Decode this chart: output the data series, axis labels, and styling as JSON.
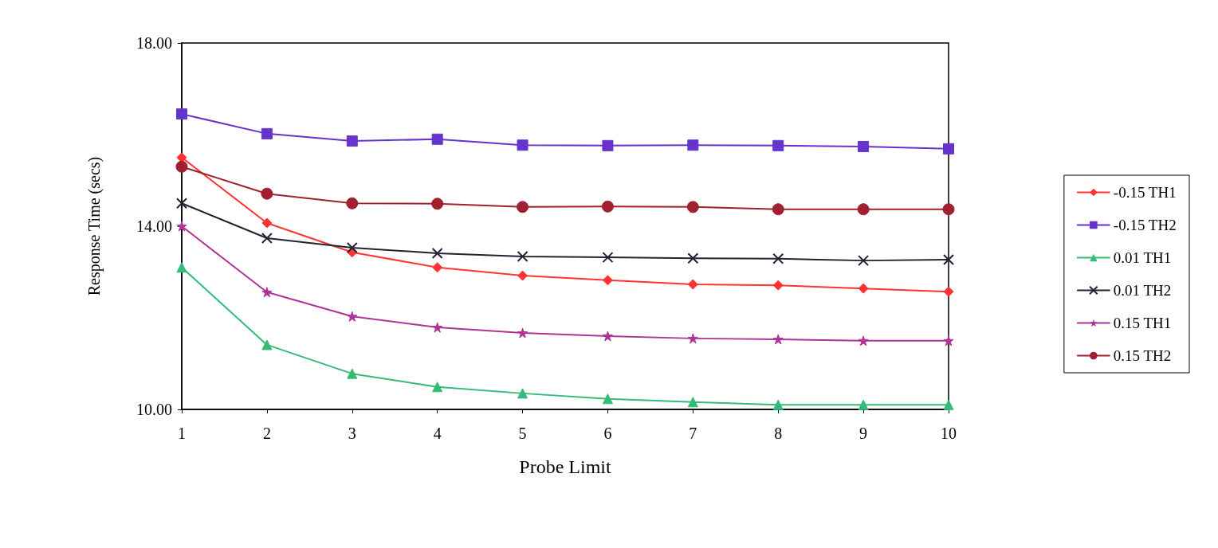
{
  "chart_data": {
    "type": "line",
    "xlabel": "Probe Limit",
    "ylabel": "Response Time (secs)",
    "x": [
      1,
      2,
      3,
      4,
      5,
      6,
      7,
      8,
      9,
      10
    ],
    "xlim": [
      1,
      10
    ],
    "xticks": [
      1,
      2,
      3,
      4,
      5,
      6,
      7,
      8,
      9,
      10
    ],
    "ylim": [
      10,
      18
    ],
    "yticks": [
      {
        "value": 10,
        "label": "10.00"
      },
      {
        "value": 14,
        "label": "14.00"
      },
      {
        "value": 18,
        "label": "18.00"
      }
    ],
    "grid": false,
    "legend": "right",
    "line_style": "solid",
    "series": [
      {
        "name": "-0.15 TH1",
        "color": "#ff3333",
        "marker": "diamond",
        "values": [
          15.5,
          14.07,
          13.43,
          13.1,
          12.92,
          12.82,
          12.73,
          12.71,
          12.64,
          12.57
        ]
      },
      {
        "name": "-0.15 TH2",
        "color": "#6633cc",
        "marker": "square",
        "values": [
          16.45,
          16.02,
          15.86,
          15.9,
          15.77,
          15.76,
          15.77,
          15.76,
          15.74,
          15.69
        ]
      },
      {
        "name": "0.01 TH1",
        "color": "#33bb77",
        "marker": "triangle",
        "values": [
          13.1,
          11.41,
          10.78,
          10.49,
          10.35,
          10.23,
          10.16,
          10.1,
          10.1,
          10.1
        ]
      },
      {
        "name": "0.01 TH2",
        "color": "#222233",
        "marker": "cross",
        "values": [
          14.5,
          13.74,
          13.53,
          13.41,
          13.34,
          13.32,
          13.3,
          13.29,
          13.25,
          13.27
        ]
      },
      {
        "name": "0.15 TH1",
        "color": "#b03399",
        "marker": "star",
        "values": [
          14.0,
          12.56,
          12.03,
          11.79,
          11.67,
          11.6,
          11.55,
          11.53,
          11.5,
          11.5
        ]
      },
      {
        "name": "0.15 TH2",
        "color": "#a02030",
        "marker": "circle",
        "values": [
          15.3,
          14.71,
          14.5,
          14.49,
          14.42,
          14.43,
          14.42,
          14.37,
          14.37,
          14.37
        ]
      }
    ]
  }
}
